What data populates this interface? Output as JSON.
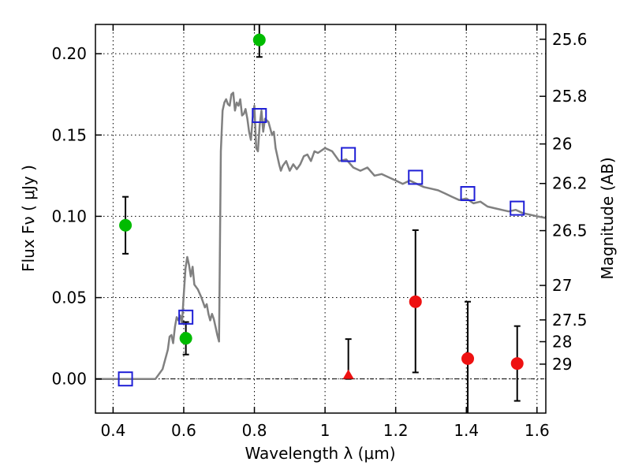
{
  "chart_data": {
    "type": "scatter",
    "xlabel": "Wavelength  λ (μm)",
    "ylabel": "Flux  Fν  ( μJy )",
    "ylabel_right": "Magnitude (AB)",
    "xlim": [
      0.35,
      1.625
    ],
    "ylim": [
      -0.021,
      0.218
    ],
    "grid": true,
    "x_ticks": [
      0.4,
      0.6,
      0.8,
      1.0,
      1.2,
      1.4,
      1.6
    ],
    "x_tick_labels": [
      "0.4",
      "0.6",
      "0.8",
      "1",
      "1.2",
      "1.4",
      "1.6"
    ],
    "y_ticks": [
      0.0,
      0.05,
      0.1,
      0.15,
      0.2
    ],
    "y_tick_labels": [
      "0.00",
      "0.05",
      "0.10",
      "0.15",
      "0.20"
    ],
    "right_ticks": [
      {
        "label": "25.6",
        "flux": 0.2089
      },
      {
        "label": "25.8",
        "flux": 0.1738
      },
      {
        "label": "26",
        "flux": 0.1445
      },
      {
        "label": "26.2",
        "flux": 0.1202
      },
      {
        "label": "26.5",
        "flux": 0.0912
      },
      {
        "label": "27",
        "flux": 0.0575
      },
      {
        "label": "27.5",
        "flux": 0.0363
      },
      {
        "label": "28",
        "flux": 0.0229
      },
      {
        "label": "29",
        "flux": 0.0091
      }
    ],
    "zero_line": 0.0,
    "model_color": "#808080",
    "model_spectrum": {
      "x": [
        0.35,
        0.44,
        0.52,
        0.54,
        0.555,
        0.56,
        0.565,
        0.57,
        0.575,
        0.58,
        0.585,
        0.59,
        0.595,
        0.6,
        0.605,
        0.61,
        0.615,
        0.62,
        0.625,
        0.63,
        0.64,
        0.65,
        0.66,
        0.665,
        0.67,
        0.675,
        0.68,
        0.685,
        0.69,
        0.695,
        0.7,
        0.705,
        0.71,
        0.715,
        0.72,
        0.725,
        0.73,
        0.735,
        0.74,
        0.745,
        0.75,
        0.755,
        0.76,
        0.765,
        0.77,
        0.775,
        0.78,
        0.785,
        0.79,
        0.795,
        0.8,
        0.805,
        0.81,
        0.815,
        0.82,
        0.825,
        0.83,
        0.84,
        0.85,
        0.855,
        0.86,
        0.87,
        0.875,
        0.88,
        0.89,
        0.9,
        0.91,
        0.92,
        0.93,
        0.94,
        0.95,
        0.96,
        0.97,
        0.98,
        1.0,
        1.02,
        1.04,
        1.06,
        1.08,
        1.1,
        1.12,
        1.14,
        1.16,
        1.18,
        1.2,
        1.22,
        1.24,
        1.26,
        1.28,
        1.3,
        1.32,
        1.34,
        1.36,
        1.38,
        1.4,
        1.42,
        1.44,
        1.46,
        1.48,
        1.5,
        1.52,
        1.54,
        1.56,
        1.58,
        1.6,
        1.625
      ],
      "y": [
        0.0,
        0.0,
        0.0,
        0.006,
        0.018,
        0.026,
        0.027,
        0.022,
        0.032,
        0.038,
        0.036,
        0.039,
        0.034,
        0.052,
        0.068,
        0.075,
        0.07,
        0.063,
        0.069,
        0.058,
        0.055,
        0.05,
        0.044,
        0.046,
        0.04,
        0.036,
        0.04,
        0.037,
        0.032,
        0.027,
        0.023,
        0.14,
        0.165,
        0.17,
        0.172,
        0.169,
        0.168,
        0.175,
        0.176,
        0.165,
        0.17,
        0.168,
        0.172,
        0.162,
        0.163,
        0.166,
        0.16,
        0.152,
        0.147,
        0.16,
        0.168,
        0.142,
        0.14,
        0.156,
        0.165,
        0.152,
        0.16,
        0.158,
        0.15,
        0.152,
        0.142,
        0.132,
        0.128,
        0.131,
        0.134,
        0.128,
        0.132,
        0.129,
        0.132,
        0.137,
        0.138,
        0.134,
        0.14,
        0.139,
        0.142,
        0.14,
        0.134,
        0.135,
        0.13,
        0.128,
        0.13,
        0.125,
        0.126,
        0.124,
        0.122,
        0.12,
        0.122,
        0.12,
        0.118,
        0.117,
        0.116,
        0.114,
        0.112,
        0.11,
        0.111,
        0.108,
        0.109,
        0.106,
        0.105,
        0.104,
        0.103,
        0.104,
        0.102,
        0.101,
        0.1,
        0.099
      ]
    },
    "model_photometry": {
      "color": "#1f1fd6",
      "points": [
        {
          "x": 0.435,
          "y": 0.0
        },
        {
          "x": 0.606,
          "y": 0.038
        },
        {
          "x": 0.814,
          "y": 0.162
        },
        {
          "x": 1.066,
          "y": 0.138
        },
        {
          "x": 1.256,
          "y": 0.124
        },
        {
          "x": 1.404,
          "y": 0.114
        },
        {
          "x": 1.544,
          "y": 0.105
        }
      ]
    },
    "observed_hst_optical": {
      "color": "#00bb00",
      "points": [
        {
          "x": 0.435,
          "y": 0.0945,
          "err_low": 0.077,
          "err_high": 0.112
        },
        {
          "x": 0.606,
          "y": 0.025,
          "err_low": 0.015,
          "err_high": 0.035
        },
        {
          "x": 0.814,
          "y": 0.2085,
          "err_low": 0.198,
          "err_high": 0.219
        }
      ]
    },
    "observed_nir": {
      "color": "#ee1111",
      "points": [
        {
          "x": 1.256,
          "y": 0.0475,
          "err_low": 0.004,
          "err_high": 0.0915
        },
        {
          "x": 1.404,
          "y": 0.0125,
          "err_low": -0.0215,
          "err_high": 0.0475
        },
        {
          "x": 1.544,
          "y": 0.0095,
          "err_low": -0.0135,
          "err_high": 0.0325
        }
      ]
    },
    "upper_limit": {
      "color": "#ee1111",
      "marker": "triangle",
      "point": {
        "x": 1.066,
        "y": 0.0,
        "err_low": 0.0,
        "err_high": 0.0245
      }
    }
  }
}
